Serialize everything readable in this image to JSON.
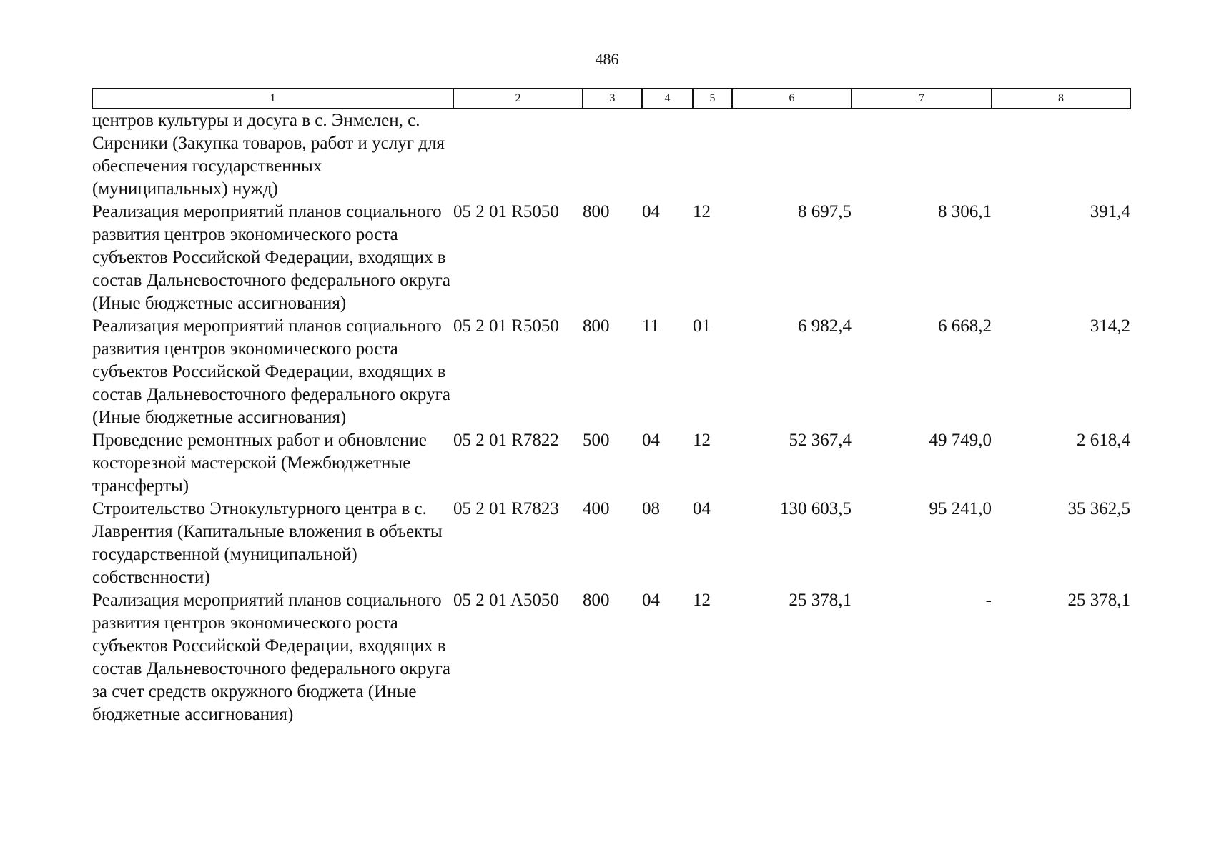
{
  "page_number": "486",
  "table": {
    "columns": [
      "1",
      "2",
      "3",
      "4",
      "5",
      "6",
      "7",
      "8"
    ],
    "rows": [
      {
        "name": "центров культуры и досуга в с. Энмелен, с. Сиреники (Закупка товаров, работ и услуг для обеспечения государственных (муниципальных) нужд)",
        "code": "",
        "vr": "",
        "rz": "",
        "pr": "",
        "total": "",
        "fed": "",
        "reg": ""
      },
      {
        "name": "Реализация мероприятий планов социального развития центров экономического роста субъектов Российской Федерации, входящих в состав Дальневосточного федерального округа (Иные бюджетные ассигнования)",
        "code": "05 2 01 R5050",
        "vr": "800",
        "rz": "04",
        "pr": "12",
        "total": "8 697,5",
        "fed": "8 306,1",
        "reg": "391,4"
      },
      {
        "name": "Реализация мероприятий планов социального развития центров экономического роста субъектов Российской Федерации, входящих в состав Дальневосточного федерального округа (Иные бюджетные ассигнования)",
        "code": "05 2 01 R5050",
        "vr": "800",
        "rz": "11",
        "pr": "01",
        "total": "6 982,4",
        "fed": "6 668,2",
        "reg": "314,2"
      },
      {
        "name": "Проведение ремонтных работ и обновление косторезной мастерской (Межбюджетные трансферты)",
        "code": "05 2 01 R7822",
        "vr": "500",
        "rz": "04",
        "pr": "12",
        "total": "52 367,4",
        "fed": "49 749,0",
        "reg": "2 618,4"
      },
      {
        "name": "Строительство Этнокультурного центра в с. Лаврентия (Капитальные вложения в объекты государственной (муниципальной) собственности)",
        "code": "05 2 01 R7823",
        "vr": "400",
        "rz": "08",
        "pr": "04",
        "total": "130 603,5",
        "fed": "95 241,0",
        "reg": "35 362,5"
      },
      {
        "name": "Реализация мероприятий планов социального развития центров экономического роста субъектов Российской Федерации, входящих в состав Дальневосточного федерального округа за счет средств окружного бюджета (Иные бюджетные ассигнования)",
        "code": "05 2 01 A5050",
        "vr": "800",
        "rz": "04",
        "pr": "12",
        "total": "25 378,1",
        "fed": "-",
        "reg": "25 378,1"
      }
    ]
  }
}
